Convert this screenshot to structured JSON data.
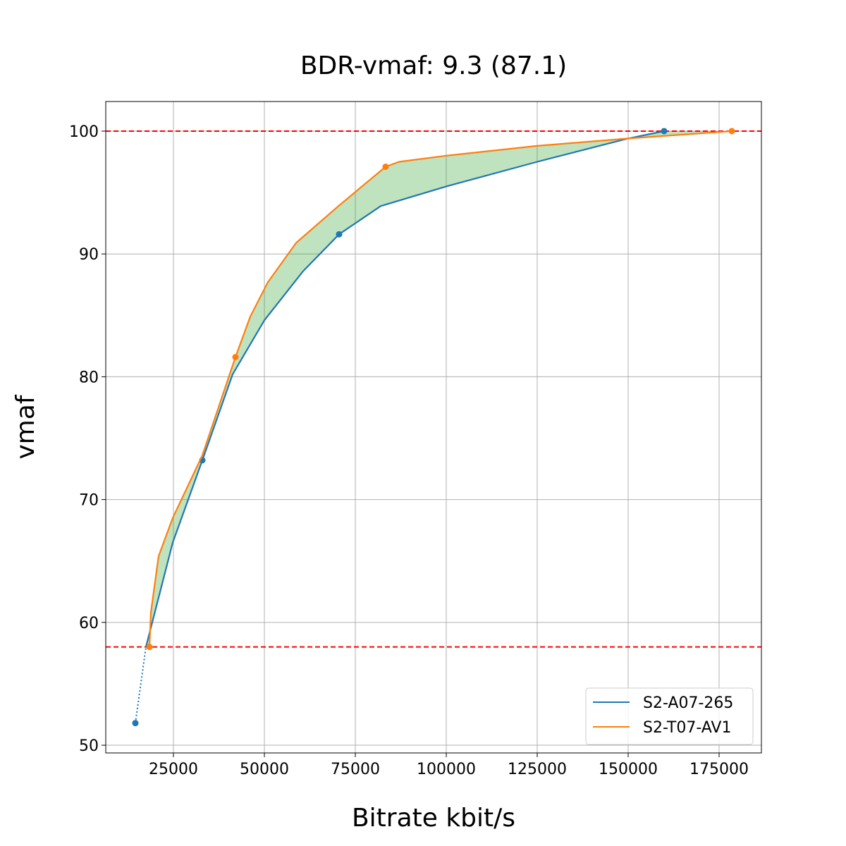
{
  "chart_data": {
    "type": "line",
    "title": "BDR-vmaf: 9.3 (87.1)",
    "xlabel": "Bitrate kbit/s",
    "ylabel": "vmaf",
    "xlim": [
      6395,
      186628
    ],
    "ylim": [
      49.37,
      102.41
    ],
    "xticks": [
      25000,
      50000,
      75000,
      100000,
      125000,
      150000,
      175000
    ],
    "yticks": [
      50,
      60,
      70,
      80,
      90,
      100
    ],
    "grid": true,
    "legend_position": "lower-right",
    "hlines": [
      {
        "y": 100,
        "color": "#ff0000",
        "style": "dashed"
      },
      {
        "y": 58,
        "color": "#ff0000",
        "style": "dashed"
      }
    ],
    "fill_color": "#2ca02c",
    "series": [
      {
        "name": "S2-A07-265",
        "color": "#1f77b4",
        "points": [
          [
            14535,
            51.8
          ],
          [
            32945,
            73.2
          ],
          [
            70543,
            91.6
          ],
          [
            159885,
            100.0
          ]
        ],
        "curve": [
          [
            17440,
            58.0
          ],
          [
            24800,
            66.5
          ],
          [
            32945,
            73.2
          ],
          [
            41280,
            80.2
          ],
          [
            50000,
            84.6
          ],
          [
            60660,
            88.6
          ],
          [
            70543,
            91.6
          ],
          [
            81980,
            93.9
          ],
          [
            100000,
            95.5
          ],
          [
            125000,
            97.5
          ],
          [
            150000,
            99.4
          ],
          [
            159885,
            100.0
          ]
        ]
      },
      {
        "name": "S2-T07-AV1",
        "color": "#ff7f0e",
        "points": [
          [
            18411,
            58.0
          ],
          [
            42054,
            81.6
          ],
          [
            83334,
            97.1
          ],
          [
            178490,
            100.0
          ]
        ],
        "curve": [
          [
            18411,
            58.0
          ],
          [
            18800,
            60.8
          ],
          [
            20930,
            65.4
          ],
          [
            24800,
            68.5
          ],
          [
            32945,
            73.6
          ],
          [
            42054,
            81.6
          ],
          [
            46120,
            84.9
          ],
          [
            50970,
            87.7
          ],
          [
            58720,
            90.9
          ],
          [
            70350,
            93.9
          ],
          [
            83334,
            97.1
          ],
          [
            87015,
            97.5
          ],
          [
            100000,
            98.0
          ],
          [
            125000,
            98.8
          ],
          [
            150000,
            99.4
          ],
          [
            178490,
            100.0
          ]
        ]
      }
    ]
  }
}
